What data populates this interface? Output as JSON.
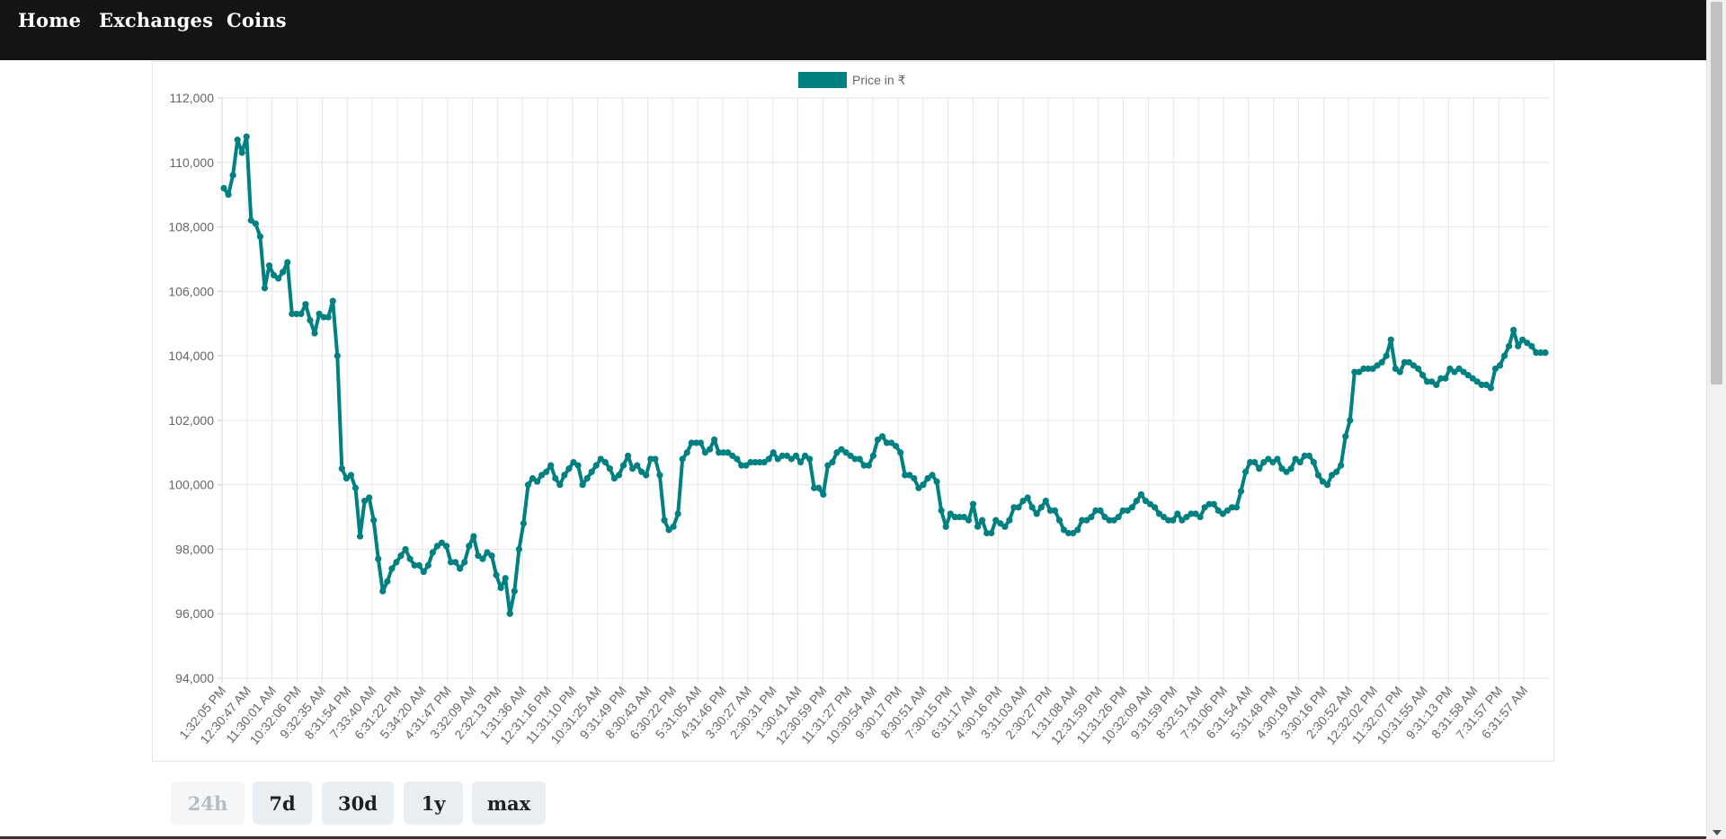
{
  "nav": {
    "home": "Home",
    "exchanges": "Exchanges",
    "coins": "Coins"
  },
  "range_buttons": {
    "d24h": "24h",
    "d7d": "7d",
    "d30d": "30d",
    "y1": "1y",
    "max": "max",
    "selected": "24h"
  },
  "colors": {
    "line": "#008080",
    "navbar": "#141414",
    "grid": "#e6e6e6",
    "button_bg": "#e9eef3"
  },
  "chart_data": {
    "type": "line",
    "legend": "Price in ₹",
    "legend_position": "top-center",
    "grid": true,
    "ylim": [
      94000,
      112000
    ],
    "y_ticks": [
      "112,000",
      "110,000",
      "108,000",
      "106,000",
      "104,000",
      "102,000",
      "100,000",
      "98,000",
      "96,000",
      "94,000"
    ],
    "x_ticks": [
      "1:32:05 PM",
      "12:30:47 AM",
      "11:30:01 AM",
      "10:32:06 PM",
      "9:32:35 AM",
      "8:31:54 PM",
      "7:33:40 AM",
      "6:31:22 PM",
      "5:34:20 AM",
      "4:31:47 PM",
      "3:32:09 AM",
      "2:32:13 PM",
      "1:31:36 AM",
      "12:31:16 PM",
      "11:31:10 PM",
      "10:31:25 AM",
      "9:31:49 PM",
      "8:30:43 AM",
      "6:30:22 PM",
      "5:31:05 AM",
      "4:31:46 PM",
      "3:30:27 AM",
      "2:30:31 PM",
      "1:30:41 AM",
      "12:30:59 PM",
      "11:31:27 PM",
      "10:30:54 AM",
      "9:30:17 PM",
      "8:30:51 AM",
      "7:30:15 PM",
      "6:31:17 AM",
      "4:30:16 PM",
      "3:31:03 AM",
      "2:30:27 PM",
      "1:31:08 AM",
      "12:31:59 PM",
      "11:31:26 PM",
      "10:32:09 AM",
      "9:31:59 PM",
      "8:32:51 AM",
      "7:31:06 PM",
      "6:31:54 AM",
      "5:31:48 PM",
      "4:30:19 AM",
      "3:30:16 PM",
      "2:30:52 AM",
      "12:32:02 PM",
      "11:32:07 PM",
      "10:31:55 AM",
      "9:31:13 PM",
      "8:31:58 AM",
      "7:31:57 PM",
      "6:31:57 AM"
    ],
    "series": [
      {
        "name": "Price in ₹",
        "values": [
          109200,
          109000,
          109600,
          110700,
          110300,
          110800,
          108200,
          108100,
          107700,
          106100,
          106800,
          106500,
          106400,
          106600,
          106900,
          105300,
          105300,
          105300,
          105600,
          105100,
          104700,
          105300,
          105200,
          105200,
          105700,
          104000,
          100500,
          100200,
          100300,
          99900,
          98400,
          99500,
          99600,
          98900,
          97700,
          96700,
          97000,
          97400,
          97600,
          97800,
          98000,
          97700,
          97500,
          97500,
          97300,
          97500,
          97900,
          98100,
          98200,
          98100,
          97600,
          97600,
          97400,
          97600,
          98100,
          98400,
          97800,
          97700,
          97900,
          97800,
          97200,
          96800,
          97100,
          96000,
          96700,
          98000,
          98800,
          100000,
          100200,
          100100,
          100300,
          100400,
          100600,
          100200,
          100000,
          100300,
          100500,
          100700,
          100600,
          100000,
          100200,
          100400,
          100600,
          100800,
          100700,
          100500,
          100200,
          100300,
          100600,
          100900,
          100500,
          100600,
          100400,
          100300,
          100800,
          100800,
          100300,
          98900,
          98600,
          98700,
          99100,
          100800,
          101000,
          101300,
          101300,
          101300,
          101000,
          101100,
          101400,
          101000,
          101000,
          101000,
          100900,
          100800,
          100600,
          100600,
          100700,
          100700,
          100700,
          100700,
          100800,
          101000,
          100800,
          100900,
          100900,
          100800,
          100900,
          100700,
          100900,
          100800,
          99900,
          99900,
          99700,
          100600,
          100700,
          101000,
          101100,
          101000,
          100900,
          100800,
          100800,
          100600,
          100600,
          100900,
          101400,
          101500,
          101300,
          101300,
          101200,
          101000,
          100300,
          100300,
          100200,
          99900,
          100000,
          100200,
          100300,
          100100,
          99200,
          98700,
          99100,
          99000,
          99000,
          99000,
          98900,
          99400,
          98700,
          98900,
          98500,
          98500,
          98900,
          98800,
          98700,
          98900,
          99300,
          99300,
          99500,
          99600,
          99300,
          99100,
          99300,
          99500,
          99200,
          99200,
          98900,
          98600,
          98500,
          98500,
          98600,
          98900,
          98900,
          99000,
          99200,
          99200,
          99000,
          98900,
          98900,
          99000,
          99200,
          99200,
          99300,
          99500,
          99700,
          99500,
          99400,
          99300,
          99100,
          99000,
          98900,
          98900,
          99100,
          98900,
          99000,
          99100,
          99100,
          99000,
          99300,
          99400,
          99400,
          99200,
          99100,
          99200,
          99300,
          99300,
          99800,
          100400,
          100700,
          100700,
          100500,
          100700,
          100800,
          100700,
          100800,
          100500,
          100400,
          100500,
          100800,
          100700,
          100900,
          100900,
          100700,
          100300,
          100100,
          100000,
          100300,
          100400,
          100600,
          101500,
          102000,
          103500,
          103500,
          103600,
          103600,
          103600,
          103700,
          103800,
          104000,
          104500,
          103600,
          103500,
          103800,
          103800,
          103700,
          103600,
          103400,
          103200,
          103200,
          103100,
          103300,
          103300,
          103600,
          103500,
          103600,
          103500,
          103400,
          103300,
          103200,
          103100,
          103100,
          103000,
          103600,
          103700,
          104000,
          104300,
          104800,
          104300,
          104500,
          104400,
          104300,
          104100,
          104100,
          104100
        ]
      }
    ]
  }
}
